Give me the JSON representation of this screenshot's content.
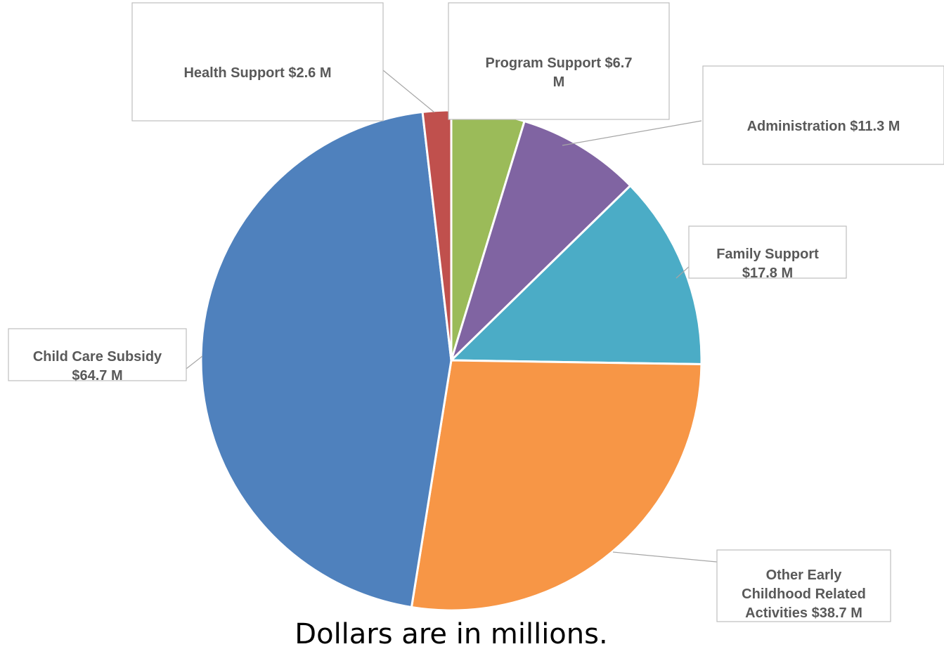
{
  "chart_data": {
    "type": "pie",
    "start": "12 o'clock, clockwise",
    "colors": {
      "Program Support": "#9bbb59",
      "Administration": "#8064a2",
      "Family Support": "#4bacc6",
      "Other Early Childhood Related Activities": "#f79646",
      "Child Care Subsidy": "#4f81bd",
      "Health Support": "#c0504d"
    },
    "slices": [
      {
        "category": "Program Support",
        "value": 6.7,
        "label_lines": [
          "Program Support $6.7",
          "M"
        ]
      },
      {
        "category": "Administration",
        "value": 11.3,
        "label_lines": [
          "Administration $11.3 M"
        ]
      },
      {
        "category": "Family Support",
        "value": 17.8,
        "label_lines": [
          "Family Support",
          "$17.8 M"
        ]
      },
      {
        "category": "Other Early Childhood Related Activities",
        "value": 38.7,
        "label_lines": [
          "Other Early",
          "Childhood Related",
          "Activities $38.7 M"
        ]
      },
      {
        "category": "Child Care Subsidy",
        "value": 64.7,
        "label_lines": [
          "Child Care Subsidy",
          "$64.7 M"
        ]
      },
      {
        "category": "Health Support",
        "value": 2.6,
        "label_lines": [
          "Health Support $2.6 M"
        ]
      }
    ],
    "data_labels": "callout boxes with leader lines"
  },
  "footnote": "Dollars are in millions."
}
